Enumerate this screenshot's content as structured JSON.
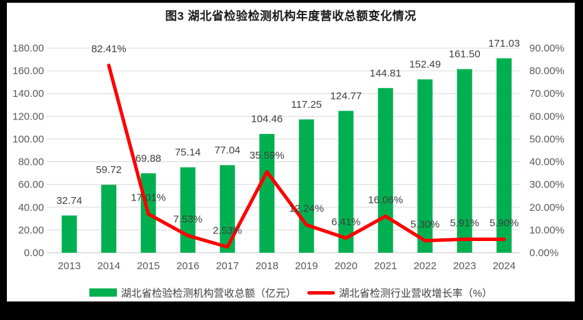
{
  "title": "图3 湖北省检验检测机构年度营收总额变化情况",
  "legend": [
    {
      "label": "湖北省检验检测机构营收总额（亿元）",
      "color": "#00B050",
      "swatch": "bar"
    },
    {
      "label": "湖北省检测行业营收增长率（%）",
      "color": "#FF0000",
      "swatch": "line"
    }
  ],
  "colors": {
    "bar": "#00B050",
    "line": "#FF0000",
    "gridline": "#D9D9D9",
    "baseline": "#C6C6C6",
    "axis_text": "#595959",
    "data_label_text": "#404040",
    "frame_border": "#000000",
    "background": "#FFFFFF"
  },
  "chart_data": {
    "type": "bar",
    "subtype": "combo-bar-line",
    "title": "图3 湖北省检验检测机构年度营收总额变化情况",
    "categories": [
      "2013",
      "2014",
      "2015",
      "2016",
      "2017",
      "2018",
      "2019",
      "2020",
      "2021",
      "2022",
      "2023",
      "2024"
    ],
    "series": [
      {
        "name": "湖北省检验检测机构营收总额（亿元）",
        "type": "bar",
        "axis": "left",
        "color": "#00B050",
        "values": [
          32.74,
          59.72,
          69.88,
          75.14,
          77.04,
          104.46,
          117.25,
          124.77,
          144.81,
          152.49,
          161.5,
          171.03
        ],
        "labels": [
          "32.74",
          "59.72",
          "69.88",
          "75.14",
          "77.04",
          "104.46",
          "117.25",
          "124.77",
          "144.81",
          "152.49",
          "161.50",
          "171.03"
        ]
      },
      {
        "name": "湖北省检测行业营收增长率（%）",
        "type": "line",
        "axis": "right",
        "color": "#FF0000",
        "values": [
          null,
          82.41,
          17.01,
          7.53,
          2.53,
          35.59,
          12.24,
          6.41,
          16.06,
          5.3,
          5.91,
          5.9
        ],
        "labels": [
          "",
          "82.41%",
          "17.01%",
          "7.53%",
          "2.53%",
          "35.59%",
          "12.24%",
          "6.41%",
          "16.06%",
          "5.30%",
          "5.91%",
          "5.90%"
        ]
      }
    ],
    "left_axis": {
      "min": 0,
      "max": 180,
      "step": 20,
      "ticks": [
        "0.00",
        "20.00",
        "40.00",
        "60.00",
        "80.00",
        "100.00",
        "120.00",
        "140.00",
        "160.00",
        "180.00"
      ]
    },
    "right_axis": {
      "min": 0,
      "max": 90,
      "step": 10,
      "ticks": [
        "0.00%",
        "10.00%",
        "20.00%",
        "30.00%",
        "40.00%",
        "50.00%",
        "60.00%",
        "70.00%",
        "80.00%",
        "90.00%"
      ]
    },
    "xlabel": "",
    "ylabel": "",
    "grid": true,
    "legend_position": "bottom"
  }
}
